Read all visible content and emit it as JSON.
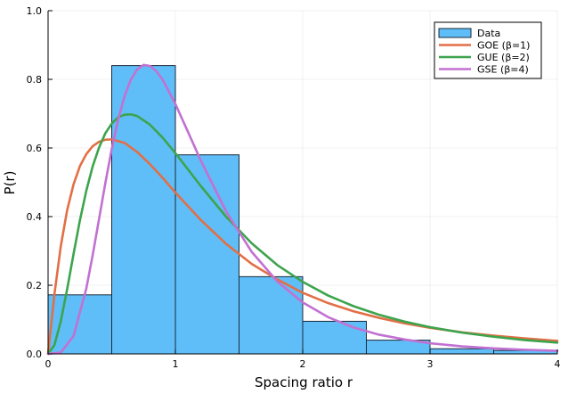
{
  "chart_data": {
    "type": "bar",
    "xlabel": "Spacing ratio r",
    "ylabel": "P(r)",
    "xlim": [
      0,
      4
    ],
    "ylim": [
      0,
      1
    ],
    "xticks": [
      "0",
      "1",
      "2",
      "3",
      "4"
    ],
    "yticks": [
      "0.0",
      "0.2",
      "0.4",
      "0.6",
      "0.8",
      "1.0"
    ],
    "grid": true,
    "legend_position": "top-right",
    "histogram": {
      "name": "Data",
      "color": "#5FBEF8",
      "bin_edges": [
        0,
        0.5,
        1,
        1.5,
        2,
        2.5,
        3,
        3.5,
        4
      ],
      "values": [
        0.172,
        0.84,
        0.58,
        0.225,
        0.095,
        0.04,
        0.015,
        0.01
      ]
    },
    "series": [
      {
        "name": "GOE (β=1)",
        "color": "#E26F46",
        "x": [
          0,
          0.05,
          0.1,
          0.15,
          0.2,
          0.25,
          0.3,
          0.35,
          0.4,
          0.45,
          0.5,
          0.6,
          0.7,
          0.8,
          0.9,
          1.0,
          1.2,
          1.4,
          1.6,
          1.8,
          2.0,
          2.2,
          2.4,
          2.6,
          2.8,
          3.0,
          3.25,
          3.5,
          3.75,
          4.0
        ],
        "y": [
          0.0,
          0.174,
          0.314,
          0.419,
          0.494,
          0.547,
          0.582,
          0.605,
          0.618,
          0.624,
          0.625,
          0.615,
          0.588,
          0.553,
          0.513,
          0.47,
          0.39,
          0.32,
          0.262,
          0.217,
          0.178,
          0.148,
          0.124,
          0.105,
          0.089,
          0.076,
          0.063,
          0.053,
          0.045,
          0.038
        ]
      },
      {
        "name": "GUE (β=2)",
        "color": "#3DA44D",
        "x": [
          0,
          0.05,
          0.1,
          0.15,
          0.2,
          0.25,
          0.3,
          0.35,
          0.4,
          0.45,
          0.5,
          0.55,
          0.6,
          0.65,
          0.7,
          0.8,
          0.9,
          1.0,
          1.2,
          1.4,
          1.6,
          1.8,
          2.0,
          2.2,
          2.4,
          2.6,
          2.8,
          3.0,
          3.25,
          3.5,
          3.75,
          4.0
        ],
        "y": [
          0.0,
          0.026,
          0.095,
          0.189,
          0.291,
          0.389,
          0.475,
          0.546,
          0.601,
          0.643,
          0.671,
          0.689,
          0.697,
          0.698,
          0.693,
          0.668,
          0.63,
          0.585,
          0.489,
          0.399,
          0.322,
          0.259,
          0.21,
          0.17,
          0.139,
          0.114,
          0.094,
          0.078,
          0.062,
          0.05,
          0.04,
          0.033
        ]
      },
      {
        "name": "GSE (β=4)",
        "color": "#C271D2",
        "x": [
          0,
          0.1,
          0.2,
          0.3,
          0.35,
          0.4,
          0.45,
          0.5,
          0.55,
          0.6,
          0.65,
          0.7,
          0.75,
          0.8,
          0.85,
          0.9,
          1.0,
          1.1,
          1.2,
          1.4,
          1.6,
          1.8,
          2.0,
          2.2,
          2.4,
          2.6,
          2.8,
          3.0,
          3.25,
          3.5,
          3.75,
          4.0
        ],
        "y": [
          0.0,
          0.004,
          0.052,
          0.19,
          0.287,
          0.392,
          0.498,
          0.597,
          0.682,
          0.75,
          0.799,
          0.829,
          0.842,
          0.839,
          0.824,
          0.799,
          0.728,
          0.646,
          0.563,
          0.414,
          0.297,
          0.211,
          0.15,
          0.107,
          0.077,
          0.056,
          0.042,
          0.031,
          0.022,
          0.016,
          0.012,
          0.009
        ]
      }
    ]
  }
}
